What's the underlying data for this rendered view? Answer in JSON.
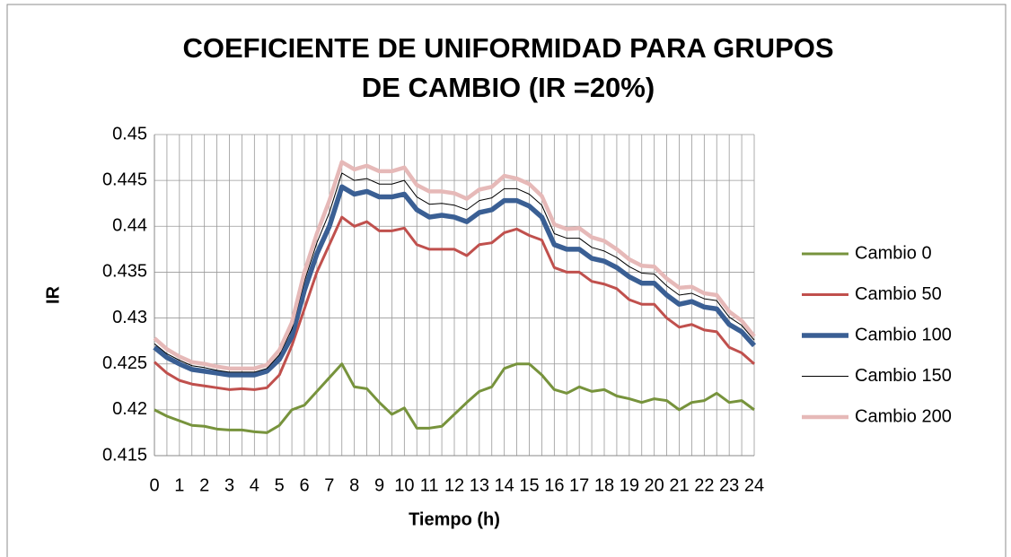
{
  "chart_data": {
    "type": "line",
    "title": [
      "COEFICIENTE DE UNIFORMIDAD PARA GRUPOS",
      "DE CAMBIO (IR =20%)"
    ],
    "x_label": "Tiempo (h)",
    "y_label": "IR",
    "x": [
      0,
      0.5,
      1,
      1.5,
      2,
      2.5,
      3,
      3.5,
      4,
      4.5,
      5,
      5.5,
      6,
      6.5,
      7,
      7.5,
      8,
      8.5,
      9,
      9.5,
      10,
      10.5,
      11,
      11.5,
      12,
      12.5,
      13,
      13.5,
      14,
      14.5,
      15,
      15.5,
      16,
      16.5,
      17,
      17.5,
      18,
      18.5,
      19,
      19.5,
      20,
      20.5,
      21,
      21.5,
      22,
      22.5,
      23,
      23.5,
      24
    ],
    "xlim": [
      0,
      24
    ],
    "xticks": [
      0,
      1,
      2,
      3,
      4,
      5,
      6,
      7,
      8,
      9,
      10,
      11,
      12,
      13,
      14,
      15,
      16,
      17,
      18,
      19,
      20,
      21,
      22,
      23,
      24
    ],
    "ylim": [
      0.415,
      0.45
    ],
    "yticks": [
      0.415,
      0.42,
      0.425,
      0.43,
      0.435,
      0.44,
      0.445,
      0.45
    ],
    "grid": true,
    "legend": "right",
    "series": [
      {
        "name": "Cambio 0",
        "color": "#77933c",
        "values": [
          0.42,
          0.4193,
          0.4188,
          0.4183,
          0.4182,
          0.4179,
          0.4178,
          0.4178,
          0.4176,
          0.4175,
          0.4183,
          0.42,
          0.4205,
          0.422,
          0.4235,
          0.425,
          0.4225,
          0.4223,
          0.4208,
          0.4195,
          0.4202,
          0.418,
          0.418,
          0.4182,
          0.4195,
          0.4208,
          0.422,
          0.4225,
          0.4245,
          0.425,
          0.425,
          0.4238,
          0.4222,
          0.4218,
          0.4225,
          0.422,
          0.4222,
          0.4215,
          0.4212,
          0.4208,
          0.4212,
          0.421,
          0.42,
          0.4208,
          0.421,
          0.4218,
          0.4208,
          0.421,
          0.42
        ]
      },
      {
        "name": "Cambio 50",
        "color": "#c0504d",
        "values": [
          0.4252,
          0.424,
          0.4232,
          0.4228,
          0.4226,
          0.4224,
          0.4222,
          0.4223,
          0.4222,
          0.4224,
          0.4238,
          0.427,
          0.431,
          0.435,
          0.438,
          0.441,
          0.44,
          0.4405,
          0.4395,
          0.4395,
          0.4398,
          0.438,
          0.4375,
          0.4375,
          0.4375,
          0.4368,
          0.438,
          0.4382,
          0.4393,
          0.4397,
          0.439,
          0.4385,
          0.4355,
          0.435,
          0.435,
          0.434,
          0.4337,
          0.4332,
          0.432,
          0.4315,
          0.4315,
          0.43,
          0.429,
          0.4293,
          0.4287,
          0.4285,
          0.4268,
          0.4262,
          0.425
        ]
      },
      {
        "name": "Cambio 100",
        "color": "#3a5f94",
        "values": [
          0.4268,
          0.4257,
          0.425,
          0.4244,
          0.4242,
          0.424,
          0.4238,
          0.4238,
          0.4238,
          0.4242,
          0.4255,
          0.428,
          0.433,
          0.437,
          0.44,
          0.4443,
          0.4435,
          0.4438,
          0.4432,
          0.4432,
          0.4435,
          0.4418,
          0.441,
          0.4412,
          0.441,
          0.4405,
          0.4415,
          0.4418,
          0.4428,
          0.4428,
          0.4422,
          0.441,
          0.438,
          0.4375,
          0.4375,
          0.4365,
          0.4362,
          0.4355,
          0.4345,
          0.4338,
          0.4338,
          0.4325,
          0.4315,
          0.4318,
          0.4312,
          0.431,
          0.4293,
          0.4285,
          0.427
        ]
      },
      {
        "name": "Cambio 150",
        "color": "#000000",
        "values": [
          0.4272,
          0.4261,
          0.4254,
          0.4248,
          0.4246,
          0.4243,
          0.4241,
          0.4241,
          0.4241,
          0.4245,
          0.426,
          0.4288,
          0.434,
          0.4382,
          0.4415,
          0.4458,
          0.445,
          0.4452,
          0.4446,
          0.4446,
          0.445,
          0.4432,
          0.4424,
          0.4425,
          0.4423,
          0.4418,
          0.4428,
          0.4431,
          0.4441,
          0.4441,
          0.4435,
          0.4423,
          0.4392,
          0.4387,
          0.4387,
          0.4377,
          0.4373,
          0.4366,
          0.4356,
          0.4349,
          0.4348,
          0.4335,
          0.4325,
          0.4327,
          0.4321,
          0.4319,
          0.4301,
          0.4292,
          0.4276
        ]
      },
      {
        "name": "Cambio 200",
        "color": "#e6b9b8",
        "values": [
          0.4278,
          0.4266,
          0.4258,
          0.4252,
          0.425,
          0.4247,
          0.4245,
          0.4245,
          0.4245,
          0.4249,
          0.4265,
          0.4295,
          0.435,
          0.4392,
          0.4428,
          0.447,
          0.4462,
          0.4466,
          0.446,
          0.446,
          0.4464,
          0.4445,
          0.4438,
          0.4438,
          0.4436,
          0.443,
          0.444,
          0.4443,
          0.4455,
          0.4452,
          0.4446,
          0.4433,
          0.4402,
          0.4397,
          0.4398,
          0.4388,
          0.4384,
          0.4375,
          0.4364,
          0.4357,
          0.4356,
          0.4343,
          0.4333,
          0.4334,
          0.4327,
          0.4325,
          0.4307,
          0.4297,
          0.428
        ]
      }
    ]
  }
}
